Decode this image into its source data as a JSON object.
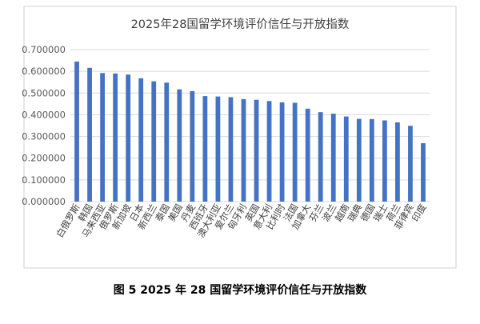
{
  "chart_data": {
    "type": "bar",
    "title": "2025年28国留学环境评价信任与开放指数",
    "categories": [
      "白俄罗斯",
      "韩国",
      "马来西亚",
      "俄罗斯",
      "新加坡",
      "日本",
      "新西兰",
      "泰国",
      "美国",
      "丹麦",
      "西班牙",
      "澳大利亚",
      "爱尔兰",
      "匈牙利",
      "英国",
      "意大利",
      "比利时",
      "法国",
      "加拿大",
      "芬兰",
      "波兰",
      "越南",
      "瑞典",
      "德国",
      "瑞士",
      "荷兰",
      "菲律宾",
      "印度"
    ],
    "values": [
      0.645,
      0.616,
      0.592,
      0.59,
      0.585,
      0.568,
      0.554,
      0.548,
      0.517,
      0.509,
      0.486,
      0.484,
      0.481,
      0.472,
      0.469,
      0.463,
      0.457,
      0.455,
      0.428,
      0.412,
      0.405,
      0.392,
      0.381,
      0.38,
      0.374,
      0.365,
      0.349,
      0.269
    ],
    "y_ticks": [
      "0.000000",
      "0.100000",
      "0.200000",
      "0.300000",
      "0.400000",
      "0.500000",
      "0.600000",
      "0.700000"
    ],
    "ylim": [
      0,
      0.7
    ],
    "grid": true,
    "legend": false,
    "bar_color": "#4472c4"
  },
  "caption": "图 5 2025 年 28 国留学环境评价信任与开放指数"
}
